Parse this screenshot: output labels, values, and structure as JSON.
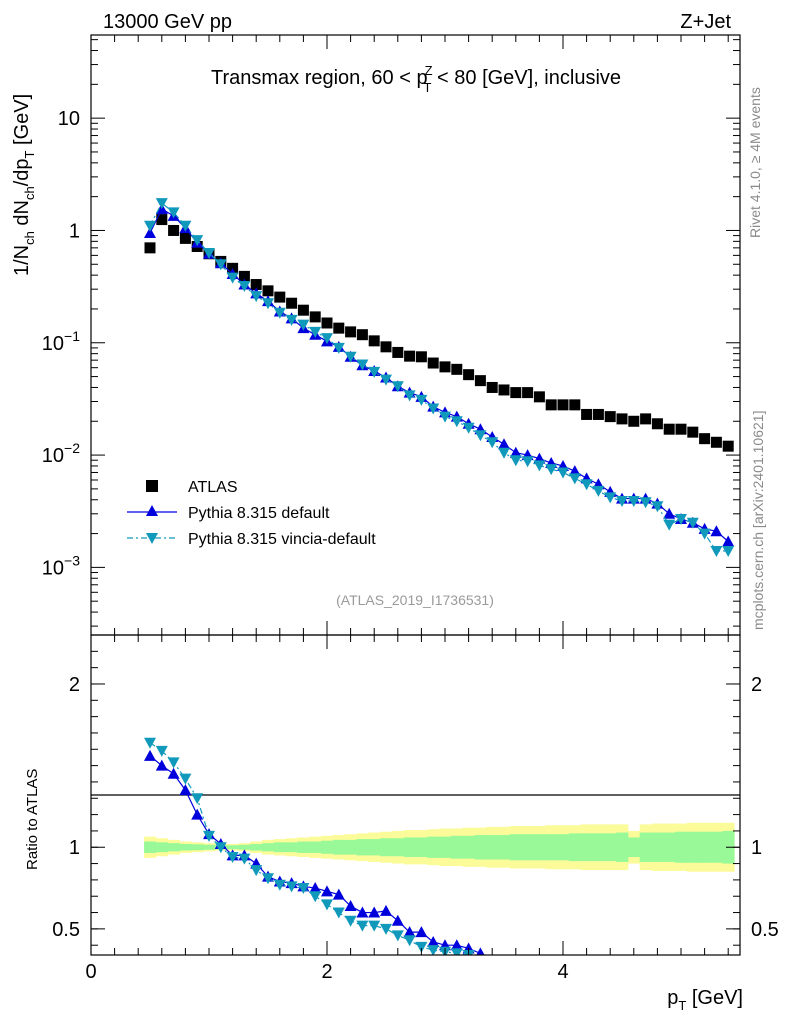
{
  "header": {
    "energy_label": "13000 GeV pp",
    "process_label": "Z+Jet"
  },
  "side_labels": {
    "rivet": "Rivet 4.1.0, ≥ 4M events",
    "mcplots": "mcplots.cern.ch [arXiv:2401.10621]"
  },
  "analysis_id": "(ATLAS_2019_I1736531)",
  "colors": {
    "atlas": "#000000",
    "default": "#0000dd",
    "vincia": "#1199bb",
    "band_inner": "#99f999",
    "band_outer": "#fbfb99"
  },
  "chart_data": [
    {
      "type": "scatter",
      "panel": "main",
      "title": "Transmax region, 60 < p_T^Z < 80 [GeV], inclusive",
      "title_parts": {
        "pre": "Transmax region, 60 < p",
        "sub": "T",
        "sup": "Z",
        "post": " < 80 [GeV], inclusive"
      },
      "ylabel": "1/N_ch dN_ch/dp_T [GeV]",
      "ylabel_parts": {
        "a": "1/N",
        "a_sub": "ch",
        "b": " dN",
        "b_sub": "ch",
        "c": "/dp",
        "c_sub": "T",
        "d": " [GeV]"
      },
      "yscale": "log",
      "ylim": [
        0.00025,
        55
      ],
      "xlim": [
        0,
        5.5
      ],
      "y_ticks": [
        {
          "value": 0.001,
          "base": "10",
          "exp": "−3"
        },
        {
          "value": 0.01,
          "base": "10",
          "exp": "−2"
        },
        {
          "value": 0.1,
          "base": "10",
          "exp": "−1"
        },
        {
          "value": 1,
          "label": "1"
        },
        {
          "value": 10,
          "label": "10"
        }
      ],
      "x": [
        0.5,
        0.6,
        0.7,
        0.8,
        0.9,
        1.0,
        1.1,
        1.2,
        1.3,
        1.4,
        1.5,
        1.6,
        1.7,
        1.8,
        1.9,
        2.0,
        2.1,
        2.2,
        2.3,
        2.4,
        2.5,
        2.6,
        2.7,
        2.8,
        2.9,
        3.0,
        3.1,
        3.2,
        3.3,
        3.4,
        3.5,
        3.6,
        3.7,
        3.8,
        3.9,
        4.0,
        4.1,
        4.2,
        4.3,
        4.4,
        4.5,
        4.6,
        4.7,
        4.8,
        4.9,
        5.0,
        5.1,
        5.2,
        5.3,
        5.4
      ],
      "series": [
        {
          "name": "ATLAS",
          "marker": "square",
          "values": [
            0.7,
            1.25,
            1.0,
            0.85,
            0.72,
            0.62,
            0.53,
            0.46,
            0.39,
            0.33,
            0.29,
            0.255,
            0.225,
            0.195,
            0.17,
            0.15,
            0.135,
            0.125,
            0.118,
            0.104,
            0.092,
            0.082,
            0.076,
            0.075,
            0.066,
            0.061,
            0.058,
            0.052,
            0.046,
            0.04,
            0.038,
            0.036,
            0.036,
            0.033,
            0.028,
            0.028,
            0.028,
            0.023,
            0.023,
            0.022,
            0.021,
            0.02,
            0.021,
            0.019,
            0.017,
            0.017,
            0.016,
            0.014,
            0.013,
            0.012
          ]
        },
        {
          "name": "Pythia 8.315 default",
          "marker": "triangle-up",
          "values": [
            0.95,
            1.55,
            1.35,
            1.05,
            0.78,
            0.62,
            0.51,
            0.41,
            0.33,
            0.275,
            0.235,
            0.19,
            0.165,
            0.135,
            0.118,
            0.103,
            0.092,
            0.075,
            0.063,
            0.056,
            0.049,
            0.041,
            0.036,
            0.033,
            0.027,
            0.024,
            0.022,
            0.019,
            0.017,
            0.0145,
            0.0125,
            0.0105,
            0.01,
            0.0093,
            0.0085,
            0.008,
            0.0072,
            0.0062,
            0.0055,
            0.0047,
            0.0041,
            0.0041,
            0.0041,
            0.0037,
            0.003,
            0.0027,
            0.0025,
            0.0022,
            0.0021,
            0.0017
          ]
        },
        {
          "name": "Pythia 8.315 vincia-default",
          "marker": "triangle-down",
          "values": [
            1.1,
            1.75,
            1.45,
            1.1,
            0.82,
            0.63,
            0.5,
            0.38,
            0.32,
            0.26,
            0.225,
            0.185,
            0.16,
            0.145,
            0.125,
            0.11,
            0.09,
            0.075,
            0.064,
            0.055,
            0.047,
            0.041,
            0.034,
            0.031,
            0.026,
            0.022,
            0.02,
            0.0175,
            0.015,
            0.013,
            0.0105,
            0.009,
            0.0088,
            0.0081,
            0.0075,
            0.007,
            0.0062,
            0.0055,
            0.0048,
            0.0042,
            0.0039,
            0.0039,
            0.0038,
            0.0035,
            0.0024,
            0.0027,
            0.0025,
            0.002,
            0.0014,
            0.0014
          ]
        }
      ]
    },
    {
      "type": "scatter",
      "panel": "ratio",
      "ylabel": "Ratio to ATLAS",
      "xlabel": "p_T [GeV]",
      "xlabel_parts": {
        "a": "p",
        "a_sub": "T",
        "b": " [GeV]"
      },
      "ylim": [
        0.34,
        2.3
      ],
      "xlim": [
        0,
        5.5
      ],
      "y_ticks": [
        {
          "value": 0.5,
          "label": "0.5"
        },
        {
          "value": 1,
          "label": "1"
        },
        {
          "value": 2,
          "label": "2"
        }
      ],
      "x_ticks": [
        {
          "value": 0,
          "label": "0"
        },
        {
          "value": 2,
          "label": "2"
        },
        {
          "value": 4,
          "label": "4"
        }
      ],
      "x": [
        0.5,
        0.6,
        0.7,
        0.8,
        0.9,
        1.0,
        1.1,
        1.2,
        1.3,
        1.4,
        1.5,
        1.6,
        1.7,
        1.8,
        1.9,
        2.0,
        2.1,
        2.2,
        2.3,
        2.4,
        2.5,
        2.6,
        2.7,
        2.8,
        2.9,
        3.0,
        3.1,
        3.2,
        3.3,
        3.4,
        3.5,
        3.6,
        3.7,
        3.8,
        3.9,
        4.0,
        4.1,
        4.2,
        4.3,
        4.4,
        4.5,
        4.6,
        4.7,
        4.8,
        4.9,
        5.0,
        5.1,
        5.2,
        5.3,
        5.4
      ],
      "band_edges": [
        0.45,
        0.55,
        0.65,
        0.75,
        0.85,
        0.95,
        1.05,
        1.15,
        1.25,
        1.35,
        1.45,
        1.55,
        1.65,
        1.75,
        1.85,
        1.95,
        2.05,
        2.15,
        2.25,
        2.35,
        2.45,
        2.55,
        2.65,
        2.75,
        2.85,
        2.95,
        3.05,
        3.15,
        3.25,
        3.35,
        3.45,
        3.55,
        3.65,
        3.75,
        3.85,
        3.95,
        4.05,
        4.15,
        4.25,
        4.35,
        4.45,
        4.55,
        4.65,
        4.75,
        4.85,
        4.95,
        5.05,
        5.15,
        5.25,
        5.35,
        5.45
      ],
      "band_inner": [
        0.035,
        0.03,
        0.025,
        0.02,
        0.018,
        0.015,
        0.012,
        0.012,
        0.015,
        0.02,
        0.025,
        0.03,
        0.03,
        0.035,
        0.035,
        0.04,
        0.045,
        0.045,
        0.05,
        0.05,
        0.055,
        0.055,
        0.06,
        0.06,
        0.065,
        0.065,
        0.07,
        0.07,
        0.075,
        0.075,
        0.075,
        0.08,
        0.08,
        0.08,
        0.08,
        0.08,
        0.085,
        0.085,
        0.085,
        0.085,
        0.09,
        0.06,
        0.09,
        0.09,
        0.09,
        0.095,
        0.095,
        0.095,
        0.095,
        0.1
      ],
      "band_outer": [
        0.065,
        0.055,
        0.045,
        0.035,
        0.03,
        0.025,
        0.02,
        0.02,
        0.025,
        0.035,
        0.045,
        0.05,
        0.055,
        0.06,
        0.065,
        0.07,
        0.075,
        0.08,
        0.085,
        0.09,
        0.095,
        0.1,
        0.105,
        0.105,
        0.11,
        0.115,
        0.115,
        0.12,
        0.12,
        0.125,
        0.125,
        0.13,
        0.13,
        0.13,
        0.135,
        0.135,
        0.135,
        0.14,
        0.14,
        0.14,
        0.14,
        0.1,
        0.14,
        0.145,
        0.145,
        0.145,
        0.15,
        0.15,
        0.15,
        0.15
      ],
      "series": [
        {
          "name": "Pythia 8.315 default",
          "marker": "triangle-up",
          "values": [
            1.56,
            1.5,
            1.45,
            1.35,
            1.2,
            1.08,
            1.02,
            0.95,
            0.95,
            0.9,
            0.82,
            0.79,
            0.78,
            0.76,
            0.75,
            0.73,
            0.71,
            0.64,
            0.6,
            0.6,
            0.61,
            0.55,
            0.48,
            0.48,
            0.42,
            0.4,
            0.4,
            0.38,
            0.35
          ]
        },
        {
          "name": "Pythia 8.315 vincia-default",
          "marker": "triangle-down",
          "values": [
            1.64,
            1.59,
            1.52,
            1.42,
            1.3,
            1.07,
            1.0,
            0.94,
            0.93,
            0.86,
            0.81,
            0.77,
            0.76,
            0.75,
            0.7,
            0.65,
            0.6,
            0.55,
            0.52,
            0.52,
            0.5,
            0.46,
            0.43,
            0.39,
            0.37,
            0.36,
            0.35,
            0.34
          ]
        }
      ]
    }
  ]
}
